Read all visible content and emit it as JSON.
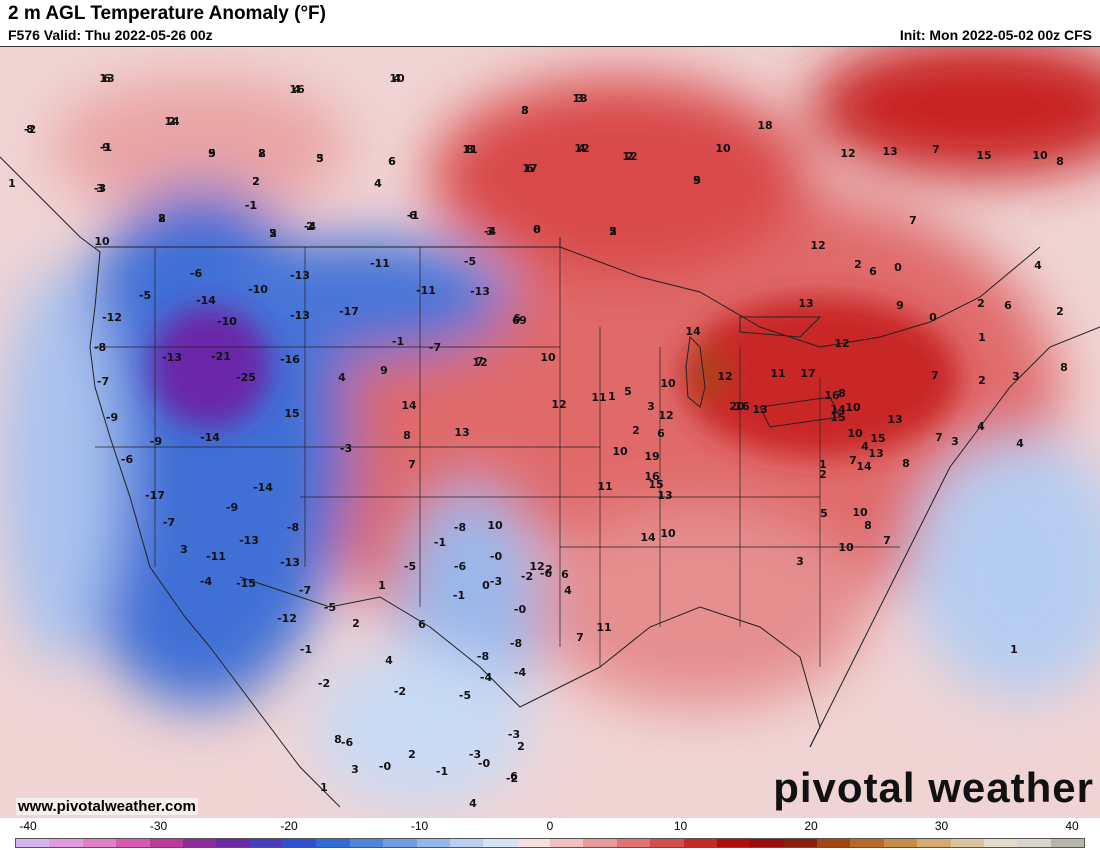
{
  "header": {
    "title": "2 m AGL Temperature Anomaly (°F)",
    "valid": "F576 Valid: Thu 2022-05-26 00z",
    "init": "Init: Mon 2022-05-02 00z CFS"
  },
  "footer": {
    "website": "www.pivotalweather.com",
    "brand": "pivotal weather"
  },
  "colorbar": {
    "ticks": [
      "-40",
      "-30",
      "-20",
      "-10",
      "0",
      "10",
      "20",
      "30",
      "40"
    ],
    "colors": [
      "#d6b4f0",
      "#e19ae0",
      "#e27ec8",
      "#d85ab0",
      "#bd3a9a",
      "#8e2a9b",
      "#6a28a8",
      "#4b3bbd",
      "#2f4fd0",
      "#2f6ad7",
      "#4d86dc",
      "#6f9fe2",
      "#93b8ea",
      "#b7cff1",
      "#d5e3f6",
      "#f4e0e0",
      "#efc0c0",
      "#e79999",
      "#df7373",
      "#d54c4c",
      "#c92727",
      "#b50b0b",
      "#9c0a0a",
      "#8a1f0d",
      "#a34712",
      "#b86a25",
      "#c78c46",
      "#d4aa6e",
      "#dcc59b",
      "#e3dccb",
      "#d8d5cf",
      "#b8b4ae"
    ]
  },
  "map_values": [
    "6",
    "4",
    "4",
    "-2",
    "2",
    "-1",
    "5",
    "2",
    "3",
    "6",
    "4",
    "-3",
    "2",
    "2",
    "-1",
    "8",
    "13",
    "12",
    "12",
    "-4",
    "4",
    "11",
    "17",
    "2",
    "-1",
    "-4",
    "0",
    "5",
    "9",
    "7",
    "10",
    "1",
    "-6",
    "-10",
    "-11",
    "-5",
    "-5",
    "-14",
    "-10",
    "-13",
    "-11",
    "-13",
    "-12",
    "-13",
    "-17",
    "6",
    "-8",
    "-21",
    "-16",
    "-1",
    "-7",
    "-13",
    "-25",
    "4",
    "9",
    "-7",
    "-9",
    "15",
    "14",
    "-14",
    "-3",
    "8",
    "-6",
    "-9",
    "-17",
    "13",
    "7",
    "-7",
    "-14",
    "12",
    "6",
    "-9",
    "-8",
    "3",
    "-13",
    "-11",
    "-4",
    "-13",
    "-15",
    "-7",
    "-12",
    "-5",
    "-1",
    "-2",
    "2",
    "4",
    "-2",
    "6",
    "-5",
    "-3",
    "-8",
    "-4",
    "-2",
    "-8",
    "-6",
    "-4",
    "-6",
    "-0",
    "2",
    "-1",
    "-3",
    "-0",
    "-3",
    "-2",
    "2",
    "4",
    "1",
    "3",
    "8",
    "1",
    "-1",
    "-5",
    "-8",
    "-6",
    "-1",
    "-0",
    "0",
    "-0",
    "2",
    "12",
    "6",
    "4",
    "7",
    "6",
    "11",
    "10",
    "7",
    "9",
    "10",
    "12",
    "11",
    "5",
    "10",
    "2",
    "12",
    "3",
    "1",
    "10",
    "6",
    "16",
    "19",
    "15",
    "13",
    "11",
    "10",
    "14",
    "14",
    "12",
    "20",
    "16",
    "13",
    "11",
    "17",
    "12",
    "16",
    "15",
    "14",
    "10",
    "14",
    "15",
    "13",
    "13",
    "10",
    "4",
    "7",
    "1",
    "2",
    "8",
    "5",
    "3",
    "10",
    "10",
    "8",
    "7",
    "8",
    "7",
    "7",
    "3",
    "2",
    "4",
    "3",
    "8",
    "2",
    "4",
    "6",
    "1",
    "2",
    "0",
    "9",
    "0",
    "6",
    "2",
    "13",
    "12",
    "12",
    "13",
    "7",
    "15",
    "10",
    "8",
    "10",
    "18",
    "13",
    "16",
    "10",
    "8",
    "14",
    "9",
    "9",
    "8",
    "5",
    "6",
    "4",
    "3",
    "2",
    "8",
    "-1",
    "3",
    "3",
    "4",
    "2",
    "2",
    "1",
    "8",
    "6",
    "5",
    "6",
    "3",
    "8",
    "2",
    "5"
  ]
}
